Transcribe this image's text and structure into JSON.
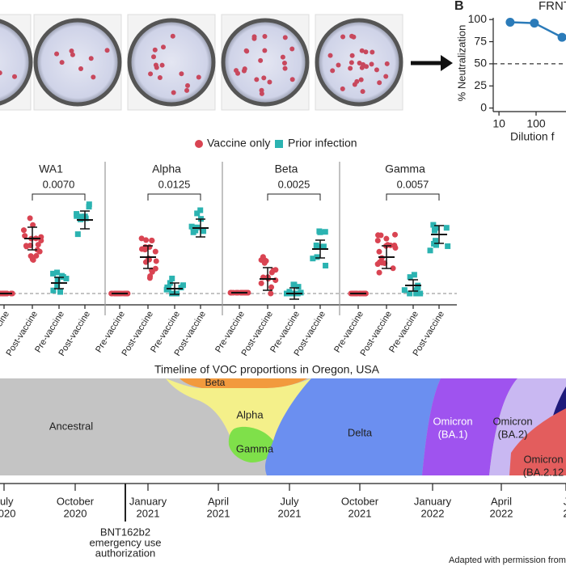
{
  "legend": [
    "Vaccine only",
    "Prior infection"
  ],
  "neutralization": {
    "groups": [
      {
        "name": "WA1",
        "p": "0.0070"
      },
      {
        "name": "Alpha",
        "p": "0.0125"
      },
      {
        "name": "Beta",
        "p": "0.0025"
      },
      {
        "name": "Gamma",
        "p": "0.0057"
      }
    ],
    "x_labels": [
      "Pre-vaccine",
      "Post-vaccine",
      "Pre-vaccine",
      "Post-vaccine"
    ]
  },
  "chart_data": {
    "type": "line",
    "panel": "B",
    "title": "FRNT",
    "ylabel": "% Neutralization",
    "xlabel": "Dilution f",
    "x": [
      20,
      90,
      500
    ],
    "values": [
      97,
      96,
      80
    ],
    "xlim": [
      7,
      640
    ],
    "ylim": [
      -4,
      102
    ],
    "xticks": [
      10,
      100
    ],
    "yticks": [
      0,
      25,
      50,
      75,
      100
    ],
    "log_x": true,
    "reference_line": 50,
    "color": "#2b7bb9"
  },
  "timeline": {
    "title": "Timeline of VOC proportions in Oregon, USA",
    "variants": [
      {
        "lines": [
          "Ancestral"
        ]
      },
      {
        "lines": [
          "Beta"
        ]
      },
      {
        "lines": [
          "Alpha"
        ]
      },
      {
        "lines": [
          "Gamma"
        ]
      },
      {
        "lines": [
          "Delta"
        ]
      },
      {
        "lines": [
          "Omicron",
          "(BA.1)"
        ]
      },
      {
        "lines": [
          "Omicron",
          "(BA.2)"
        ]
      },
      {
        "lines": [
          "Omicron",
          "(BA.2.12"
        ]
      }
    ],
    "ticks": [
      [
        "July",
        "2020"
      ],
      [
        "October",
        "2020"
      ],
      [
        "January",
        "2021"
      ],
      [
        "April",
        "2021"
      ],
      [
        "July",
        "2021"
      ],
      [
        "October",
        "2021"
      ],
      [
        "January",
        "2022"
      ],
      [
        "April",
        "2022"
      ],
      [
        "J",
        "2"
      ]
    ],
    "note": [
      "BNT162b2",
      "emergency use",
      "authorization"
    ],
    "credit": "Adapted with permission from"
  }
}
